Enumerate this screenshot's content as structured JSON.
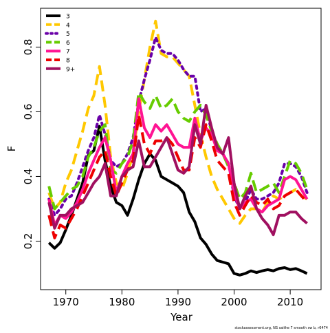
{
  "chart_data": {
    "type": "line",
    "title": "",
    "xlabel": "Year",
    "ylabel": "F",
    "xlim": [
      1965.5,
      2015.5
    ],
    "ylim": [
      0.05,
      0.92
    ],
    "x_ticks": [
      1970,
      1980,
      1990,
      2000,
      2010
    ],
    "y_ticks": [
      0.2,
      0.4,
      0.6,
      0.8
    ],
    "grid": false,
    "legend_position": "top-left",
    "caption": "stockassessment.org, NS saithe 7 smooth sw b, r6474",
    "x": [
      1967,
      1968,
      1969,
      1970,
      1971,
      1972,
      1973,
      1974,
      1975,
      1976,
      1977,
      1978,
      1979,
      1980,
      1981,
      1982,
      1983,
      1984,
      1985,
      1986,
      1987,
      1988,
      1989,
      1990,
      1991,
      1992,
      1993,
      1994,
      1995,
      1996,
      1997,
      1998,
      1999,
      2000,
      2001,
      2002,
      2003,
      2004,
      2005,
      2006,
      2007,
      2008,
      2009,
      2010,
      2011,
      2012,
      2013
    ],
    "series": [
      {
        "name": "3",
        "color": "#000000",
        "dash": "solid",
        "values": [
          0.195,
          0.178,
          0.195,
          0.235,
          0.28,
          0.33,
          0.38,
          0.465,
          0.48,
          0.555,
          0.45,
          0.37,
          0.32,
          0.31,
          0.28,
          0.33,
          0.39,
          0.44,
          0.47,
          0.45,
          0.4,
          0.39,
          0.38,
          0.37,
          0.35,
          0.29,
          0.26,
          0.21,
          0.19,
          0.16,
          0.14,
          0.135,
          0.13,
          0.1,
          0.095,
          0.1,
          0.108,
          0.103,
          0.108,
          0.112,
          0.108,
          0.115,
          0.118,
          0.112,
          0.115,
          0.108,
          0.1
        ]
      },
      {
        "name": "4",
        "color": "#ffc800",
        "dash": "dashed",
        "values": [
          0.35,
          0.3,
          0.32,
          0.38,
          0.42,
          0.48,
          0.54,
          0.61,
          0.65,
          0.74,
          0.62,
          0.46,
          0.38,
          0.36,
          0.41,
          0.47,
          0.6,
          0.7,
          0.8,
          0.88,
          0.78,
          0.77,
          0.77,
          0.75,
          0.73,
          0.71,
          0.62,
          0.53,
          0.46,
          0.4,
          0.36,
          0.33,
          0.3,
          0.27,
          0.255,
          0.28,
          0.3,
          0.3,
          0.29,
          0.32,
          0.34,
          0.33,
          0.34,
          0.35,
          0.36,
          0.34,
          0.33
        ]
      },
      {
        "name": "5",
        "color": "#6a00a8",
        "dash": "dotted",
        "values": [
          0.33,
          0.28,
          0.3,
          0.33,
          0.34,
          0.38,
          0.43,
          0.48,
          0.52,
          0.59,
          0.53,
          0.45,
          0.43,
          0.44,
          0.47,
          0.52,
          0.63,
          0.7,
          0.76,
          0.83,
          0.79,
          0.78,
          0.78,
          0.76,
          0.73,
          0.71,
          0.71,
          0.6,
          0.61,
          0.54,
          0.49,
          0.47,
          0.44,
          0.34,
          0.3,
          0.32,
          0.36,
          0.33,
          0.33,
          0.34,
          0.35,
          0.38,
          0.44,
          0.44,
          0.43,
          0.4,
          0.35
        ]
      },
      {
        "name": "6",
        "color": "#66cc00",
        "dash": "dashed",
        "values": [
          0.37,
          0.3,
          0.32,
          0.34,
          0.36,
          0.37,
          0.4,
          0.46,
          0.49,
          0.54,
          0.56,
          0.42,
          0.41,
          0.44,
          0.46,
          0.51,
          0.66,
          0.63,
          0.61,
          0.65,
          0.61,
          0.62,
          0.64,
          0.6,
          0.58,
          0.57,
          0.6,
          0.62,
          0.59,
          0.54,
          0.5,
          0.47,
          0.43,
          0.38,
          0.33,
          0.35,
          0.41,
          0.35,
          0.36,
          0.37,
          0.38,
          0.35,
          0.4,
          0.45,
          0.44,
          0.41,
          0.36
        ]
      },
      {
        "name": "7",
        "color": "#ff1493",
        "dash": "solid",
        "values": [
          0.33,
          0.25,
          0.28,
          0.27,
          0.29,
          0.32,
          0.36,
          0.41,
          0.45,
          0.49,
          0.52,
          0.45,
          0.35,
          0.4,
          0.44,
          0.47,
          0.64,
          0.55,
          0.52,
          0.56,
          0.54,
          0.56,
          0.53,
          0.5,
          0.49,
          0.49,
          0.58,
          0.51,
          0.55,
          0.53,
          0.48,
          0.47,
          0.44,
          0.35,
          0.3,
          0.32,
          0.33,
          0.3,
          0.29,
          0.31,
          0.32,
          0.33,
          0.39,
          0.4,
          0.39,
          0.36,
          0.33
        ]
      },
      {
        "name": "8",
        "color": "#ee0000",
        "dash": "dashed",
        "values": [
          0.28,
          0.21,
          0.25,
          0.24,
          0.27,
          0.3,
          0.34,
          0.38,
          0.42,
          0.46,
          0.48,
          0.4,
          0.34,
          0.38,
          0.42,
          0.45,
          0.59,
          0.5,
          0.47,
          0.51,
          0.51,
          0.52,
          0.5,
          0.46,
          0.42,
          0.42,
          0.52,
          0.49,
          0.56,
          0.51,
          0.45,
          0.43,
          0.41,
          0.32,
          0.28,
          0.31,
          0.34,
          0.32,
          0.31,
          0.33,
          0.3,
          0.31,
          0.34,
          0.35,
          0.36,
          0.34,
          0.32
        ]
      },
      {
        "name": "9+",
        "color": "#a01060",
        "dash": "solid",
        "values": [
          0.32,
          0.24,
          0.28,
          0.28,
          0.3,
          0.31,
          0.32,
          0.35,
          0.38,
          0.4,
          0.44,
          0.34,
          0.34,
          0.4,
          0.42,
          0.43,
          0.51,
          0.43,
          0.43,
          0.46,
          0.49,
          0.52,
          0.47,
          0.42,
          0.41,
          0.43,
          0.56,
          0.5,
          0.62,
          0.55,
          0.49,
          0.47,
          0.52,
          0.38,
          0.3,
          0.34,
          0.37,
          0.3,
          0.27,
          0.25,
          0.22,
          0.28,
          0.28,
          0.29,
          0.29,
          0.27,
          0.255
        ]
      }
    ]
  }
}
